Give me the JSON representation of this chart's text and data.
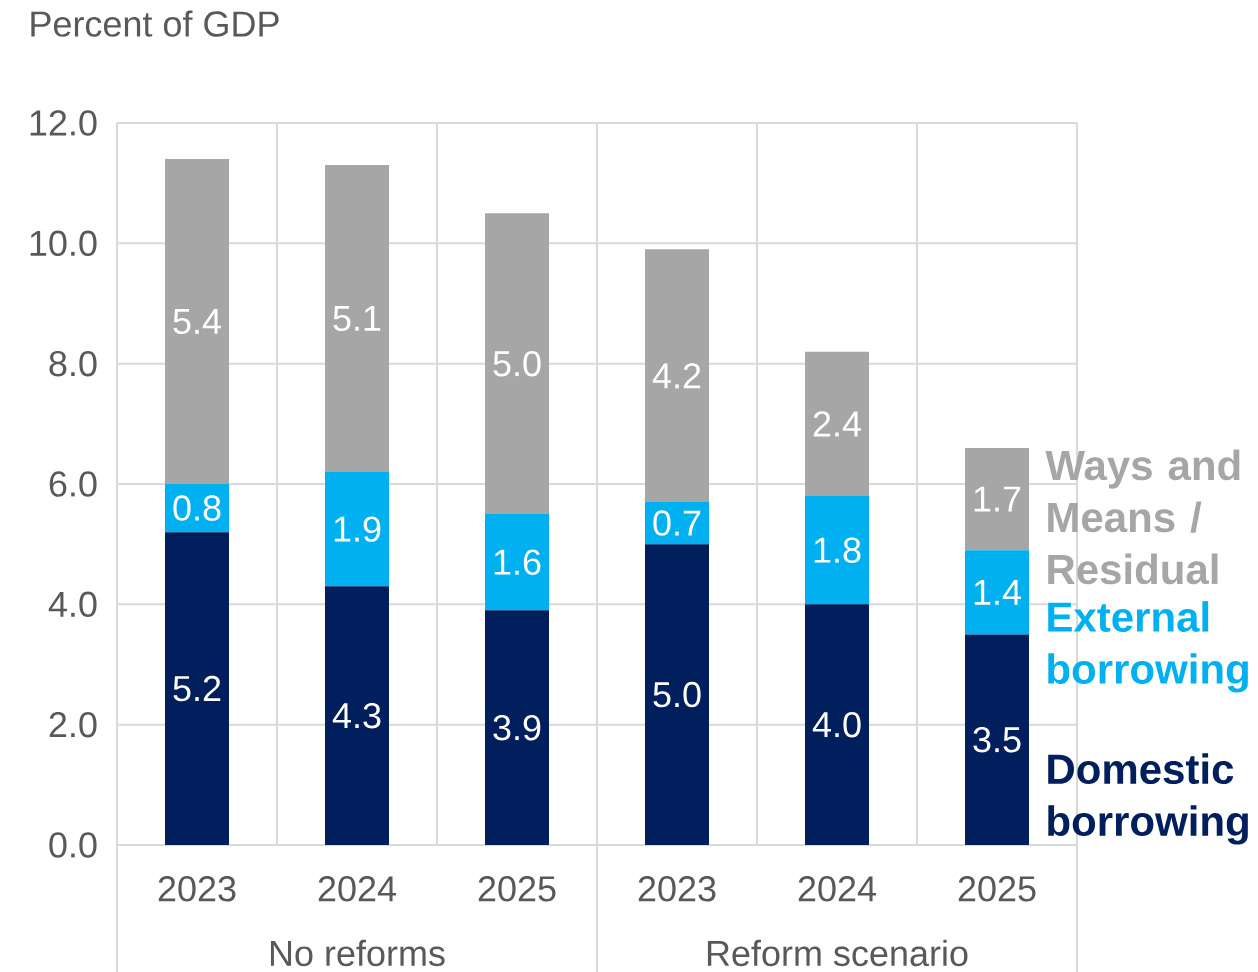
{
  "chart_data": {
    "type": "bar",
    "stacked": true,
    "ylabel": "Percent of GDP",
    "categories": [
      "2023",
      "2024",
      "2025",
      "2023",
      "2024",
      "2025"
    ],
    "annotations": [
      "No reforms",
      "Reform scenario"
    ],
    "series": [
      {
        "name": "Domestic borrowing",
        "color": "#001f5c",
        "values": [
          5.2,
          4.3,
          3.9,
          5.0,
          4.0,
          3.5
        ],
        "value_labels": [
          "5.2",
          "4.3",
          "3.9",
          "5.0",
          "4.0",
          "3.5"
        ]
      },
      {
        "name": "External borrowing",
        "color": "#00b0f0",
        "values": [
          0.8,
          1.9,
          1.6,
          0.7,
          1.8,
          1.4
        ],
        "value_labels": [
          "0.8",
          "1.9",
          "1.6",
          "0.7",
          "1.8",
          "1.4"
        ]
      },
      {
        "name": "Ways and Means / Residual",
        "color": "#a6a6a6",
        "values": [
          5.4,
          5.1,
          5.0,
          4.2,
          2.4,
          1.7
        ],
        "value_labels": [
          "5.4",
          "5.1",
          "5.0",
          "4.2",
          "2.4",
          "1.7"
        ]
      }
    ],
    "ylim": [
      0,
      12
    ],
    "yticks": [
      {
        "value": 0,
        "label": "0.0"
      },
      {
        "value": 2,
        "label": "2.0"
      },
      {
        "value": 4,
        "label": "4.0"
      },
      {
        "value": 6,
        "label": "6.0"
      },
      {
        "value": 8,
        "label": "8.0"
      },
      {
        "value": 10,
        "label": "10.0"
      },
      {
        "value": 12,
        "label": "12.0"
      }
    ],
    "grid": true,
    "legend": "right"
  }
}
